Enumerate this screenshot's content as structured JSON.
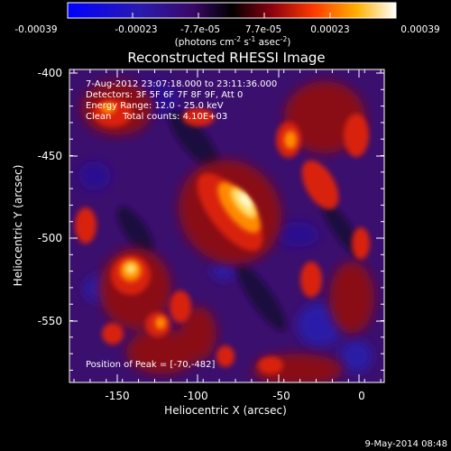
{
  "colorbar": {
    "ticks": [
      "-0.00039",
      "-0.00023",
      "-7.7e-05",
      "7.7e-05",
      "0.00023",
      "0.00039"
    ],
    "units": "(photons cm",
    "units_exp1": "-2",
    "units_mid": " s",
    "units_exp2": "-1",
    "units_end": " asec",
    "units_exp3": "-2",
    "units_close": ")"
  },
  "plot": {
    "title": "Reconstructed RHESSI Image",
    "info_lines": [
      "7-Aug-2012 23:07:18.000 to 23:11:36.000",
      "Detectors: 3F 5F 6F 7F 8F 9F, Att 0",
      "Energy Range: 12.0 - 25.0 keV",
      "Clean    Total counts: 4.10E+03"
    ],
    "peak_label": "Position of Peak = [-70,-482]",
    "x_label": "Heliocentric X (arcsec)",
    "y_label": "Heliocentric Y (arcsec)",
    "x_ticks": [
      "-150",
      "-100",
      "-50",
      "0"
    ],
    "y_ticks": [
      "-400",
      "-450",
      "-500",
      "-550"
    ]
  },
  "footer": {
    "date": "9-May-2014 08:48"
  },
  "colors": {
    "background": "#000000",
    "foreground": "#ffffff"
  }
}
